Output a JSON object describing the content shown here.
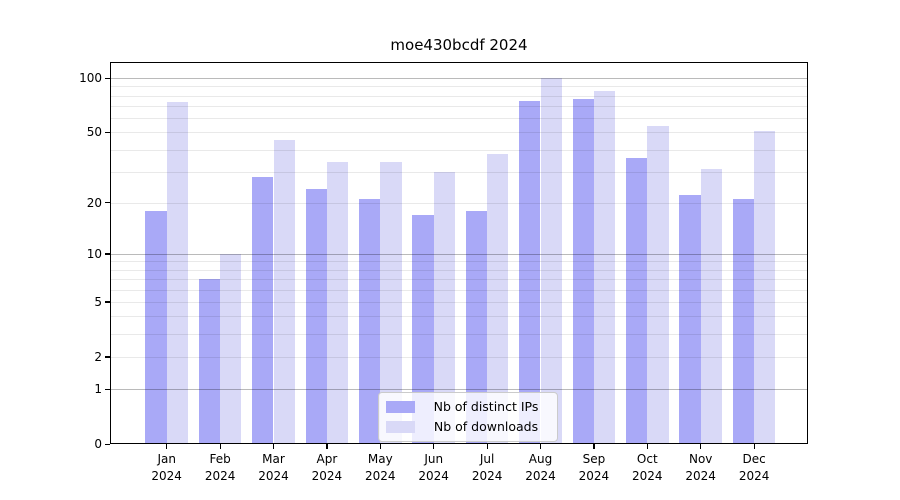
{
  "chart_data": {
    "type": "bar",
    "title": "moe430bcdf 2024",
    "scale": "log1p",
    "categories": [
      "Jan",
      "Feb",
      "Mar",
      "Apr",
      "May",
      "Jun",
      "Jul",
      "Aug",
      "Sep",
      "Oct",
      "Nov",
      "Dec"
    ],
    "year_label": "2024",
    "series": [
      {
        "name": "Nb of distinct IPs",
        "color": "#a9a9f7",
        "values": [
          18,
          7,
          28,
          24,
          21,
          17,
          18,
          75,
          77,
          36,
          22,
          21
        ]
      },
      {
        "name": "Nb of downloads",
        "color": "#d9d9f7",
        "values": [
          74,
          10,
          45,
          34,
          34,
          30,
          38,
          100,
          85,
          54,
          31,
          51
        ]
      }
    ],
    "yticks": [
      100,
      50,
      20,
      10,
      5,
      2,
      1,
      0
    ],
    "ylim": [
      0,
      122.6
    ],
    "grid_minor": [
      2,
      3,
      4,
      5,
      6,
      7,
      8,
      9,
      20,
      30,
      40,
      50,
      60,
      70,
      80,
      90
    ],
    "grid_major": [
      1,
      10,
      100
    ],
    "grid": "on",
    "legend_position": "lower-center",
    "colors": {
      "spine": "#000000",
      "grid_minor": "#e9e9e9",
      "grid_major": "#bababa",
      "legend_border": "#cbcbcb",
      "background": "#ffffff"
    }
  }
}
